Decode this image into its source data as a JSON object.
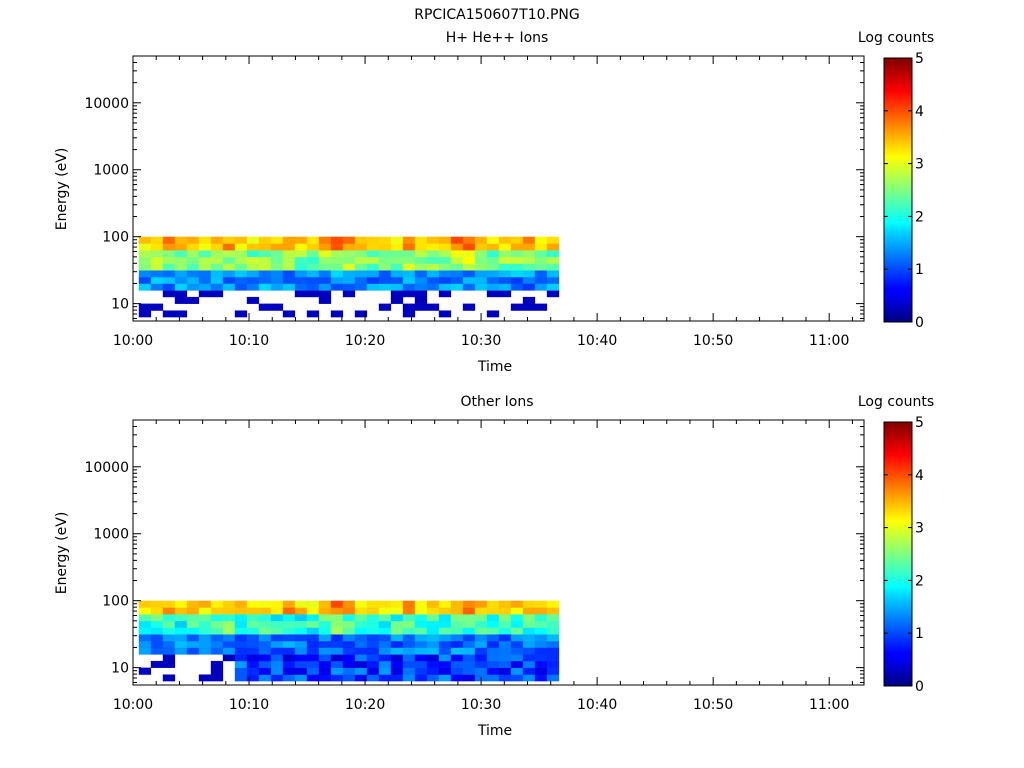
{
  "figure_title": "RPCICA150607T10.PNG",
  "chart_data": [
    {
      "type": "heatmap",
      "title": "H+ He++ Ions",
      "xlabel": "Time",
      "ylabel": "Energy (eV)",
      "y_scale": "log",
      "ylim": [
        5.5,
        50000
      ],
      "y_ticks": [
        10,
        100,
        1000,
        10000
      ],
      "y_tick_labels": [
        "10",
        "100",
        "1000",
        "10000"
      ],
      "xlim": [
        "10:00",
        "11:03"
      ],
      "x_tick_labels": [
        "10:00",
        "10:10",
        "10:20",
        "10:30",
        "10:40",
        "10:50",
        "11:00"
      ],
      "data_time_range": [
        "10:00.5",
        "10:36.7"
      ],
      "data_energy_bins": [
        6.3,
        7.9,
        10,
        12.6,
        15.8,
        20,
        25,
        31.6,
        39.8,
        50,
        63,
        79.4
      ],
      "data_energy_top": 100,
      "colorbar": {
        "label": "Log counts",
        "range": [
          0,
          5
        ],
        "ticks": [
          "0",
          "1",
          "2",
          "3",
          "4",
          "5"
        ],
        "colormap": "jet"
      },
      "log_counts_summary": "~3-4.2 at 63-100 eV, ~2.3-3 at 31-63 eV, ~1-1.7 near 20 eV, sparse ~0.3 below 16 eV",
      "grid": false
    },
    {
      "type": "heatmap",
      "title": "Other Ions",
      "xlabel": "Time",
      "ylabel": "Energy (eV)",
      "y_scale": "log",
      "ylim": [
        5.5,
        50000
      ],
      "y_ticks": [
        10,
        100,
        1000,
        10000
      ],
      "y_tick_labels": [
        "10",
        "100",
        "1000",
        "10000"
      ],
      "xlim": [
        "10:00",
        "11:03"
      ],
      "x_tick_labels": [
        "10:00",
        "10:10",
        "10:20",
        "10:30",
        "10:40",
        "10:50",
        "11:00"
      ],
      "data_time_range": [
        "10:00.5",
        "10:36.7"
      ],
      "data_energy_bins": [
        6.3,
        7.9,
        10,
        12.6,
        15.8,
        20,
        25,
        31.6,
        39.8,
        50,
        63,
        79.4
      ],
      "data_energy_top": 100,
      "colorbar": {
        "label": "Log counts",
        "range": [
          0,
          5
        ],
        "ticks": [
          "0",
          "1",
          "2",
          "3",
          "4",
          "5"
        ],
        "colormap": "jet"
      },
      "log_counts_summary": "~3-4.2 at 63-100 eV, ~1.5-2.5 at 25-63 eV, ~0.5-1.5 below 20 eV after 10:08",
      "grid": false
    }
  ]
}
